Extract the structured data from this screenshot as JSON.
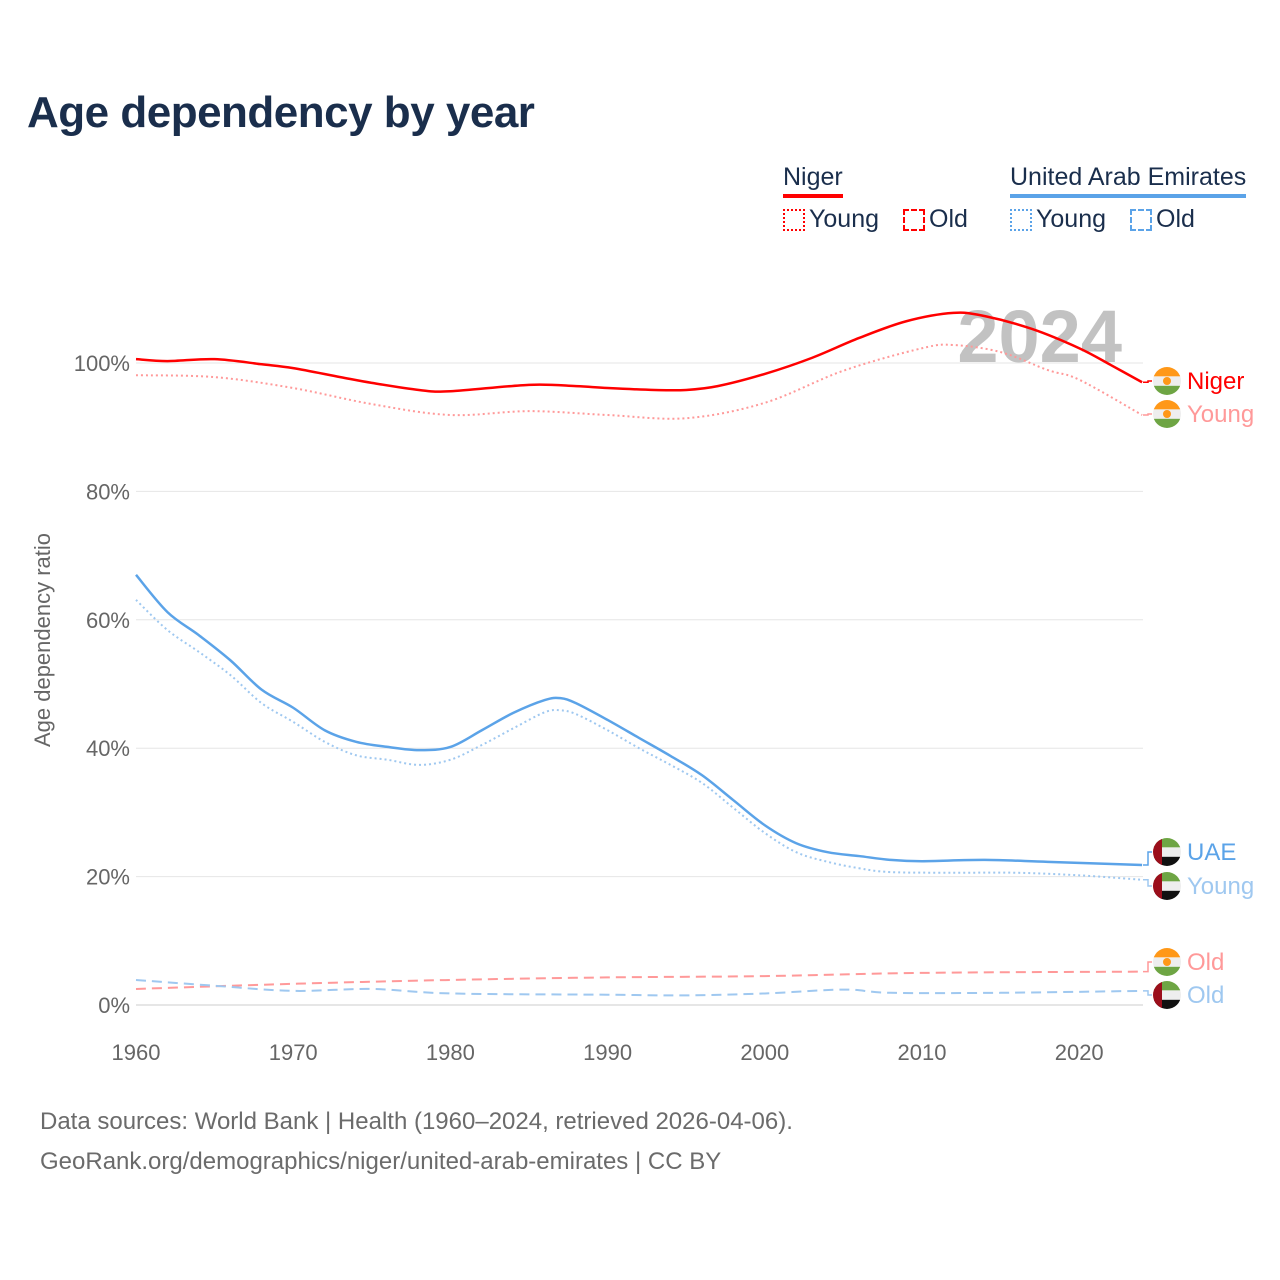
{
  "title": "Age dependency by year",
  "legend": {
    "groups": [
      {
        "name": "Niger",
        "color": "#ff0000",
        "items": [
          "Young",
          "Old"
        ]
      },
      {
        "name": "United Arab Emirates",
        "color": "#5ba3e8",
        "items": [
          "Young",
          "Old"
        ]
      }
    ]
  },
  "footer": {
    "line1": "Data sources: World Bank | Health (1960–2024, retrieved 2026-04-06).",
    "line2": "GeoRank.org/demographics/niger/united-arab-emirates | CC BY"
  },
  "chart_data": {
    "type": "line",
    "title": "Age dependency by year",
    "ylabel": "Age dependency ratio",
    "xlabel": "",
    "xlim": [
      1960,
      2024
    ],
    "ylim": [
      0,
      110
    ],
    "xticks": [
      "1960",
      "1970",
      "1980",
      "1990",
      "2000",
      "2010",
      "2020"
    ],
    "yticks": [
      "0%",
      "20%",
      "40%",
      "60%",
      "80%",
      "100%"
    ],
    "year_watermark": "2024",
    "grid": true,
    "series": [
      {
        "name": "Niger",
        "label": "Niger",
        "color": "#ff0000",
        "style": "solid",
        "flag": "niger",
        "x": [
          1960,
          1962,
          1965,
          1968,
          1970,
          1973,
          1975,
          1978,
          1980,
          1985,
          1988,
          1990,
          1993,
          1995,
          1997,
          2000,
          2003,
          2006,
          2009,
          2012,
          2014,
          2017,
          2020,
          2022,
          2024
        ],
        "y": [
          100.6,
          100.3,
          100.6,
          99.8,
          99.2,
          97.8,
          96.9,
          95.8,
          95.6,
          96.6,
          96.4,
          96.1,
          95.8,
          95.8,
          96.4,
          98.3,
          100.8,
          103.9,
          106.5,
          107.8,
          107.3,
          105.3,
          102.3,
          99.7,
          97.0
        ]
      },
      {
        "name": "Niger Young",
        "label": "Young",
        "color": "#ff9999",
        "style": "dotted",
        "flag": "niger",
        "x": [
          1960,
          1965,
          1970,
          1975,
          1980,
          1985,
          1990,
          1995,
          2000,
          2005,
          2010,
          2012,
          2015,
          2018,
          2020,
          2024
        ],
        "y": [
          98.1,
          97.8,
          96.1,
          93.6,
          91.9,
          92.5,
          91.9,
          91.4,
          93.8,
          98.8,
          102.3,
          102.8,
          101.7,
          98.9,
          97.4,
          91.9
        ]
      },
      {
        "name": "Niger Old",
        "label": "Old",
        "color": "#ff9999",
        "style": "dashed",
        "flag": "niger",
        "x": [
          1960,
          1970,
          1980,
          1990,
          2000,
          2010,
          2024
        ],
        "y": [
          2.5,
          3.3,
          3.9,
          4.3,
          4.5,
          5.0,
          5.2
        ]
      },
      {
        "name": "United Arab Emirates",
        "label": "UAE",
        "color": "#5ba3e8",
        "style": "solid",
        "flag": "uae",
        "x": [
          1960,
          1962,
          1964,
          1966,
          1968,
          1970,
          1972,
          1974,
          1976,
          1978,
          1980,
          1982,
          1984,
          1986,
          1987,
          1988,
          1990,
          1992,
          1994,
          1996,
          1998,
          2000,
          2002,
          2004,
          2006,
          2008,
          2010,
          2014,
          2018,
          2024
        ],
        "y": [
          67.0,
          61.2,
          57.6,
          53.7,
          49.1,
          46.3,
          42.8,
          41.0,
          40.2,
          39.7,
          40.2,
          42.8,
          45.5,
          47.5,
          47.8,
          47.0,
          44.4,
          41.6,
          38.8,
          35.8,
          31.9,
          28.0,
          25.2,
          23.8,
          23.2,
          22.6,
          22.4,
          22.6,
          22.3,
          21.8
        ]
      },
      {
        "name": "United Arab Emirates Young",
        "label": "Young",
        "color": "#9fc8f0",
        "style": "dotted",
        "flag": "uae",
        "x": [
          1960,
          1962,
          1964,
          1966,
          1968,
          1970,
          1972,
          1974,
          1976,
          1978,
          1980,
          1982,
          1984,
          1986,
          1987,
          1988,
          1990,
          1992,
          1994,
          1996,
          1998,
          2000,
          2002,
          2004,
          2006,
          2008,
          2012,
          2016,
          2020,
          2024
        ],
        "y": [
          63.1,
          58.4,
          55.0,
          51.4,
          47.0,
          44.1,
          41.0,
          38.9,
          38.2,
          37.4,
          38.2,
          40.5,
          43.1,
          45.6,
          45.9,
          45.3,
          42.8,
          40.0,
          37.4,
          34.6,
          30.7,
          26.8,
          23.8,
          22.3,
          21.3,
          20.7,
          20.6,
          20.6,
          20.2,
          19.5
        ]
      },
      {
        "name": "United Arab Emirates Old",
        "label": "Old",
        "color": "#9fc8f0",
        "style": "dashed",
        "flag": "uae",
        "x": [
          1960,
          1965,
          1970,
          1975,
          1980,
          1990,
          1995,
          2000,
          2005,
          2008,
          2015,
          2024
        ],
        "y": [
          3.9,
          3.0,
          2.2,
          2.5,
          1.8,
          1.6,
          1.5,
          1.8,
          2.4,
          1.9,
          1.9,
          2.2
        ]
      }
    ]
  }
}
